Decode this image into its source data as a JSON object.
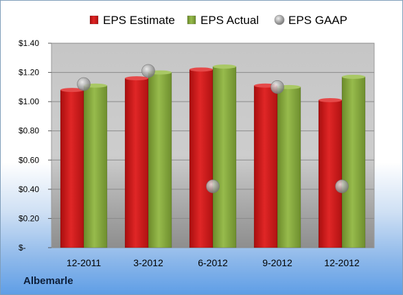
{
  "company": "Albemarle",
  "chart_data": {
    "type": "bar",
    "categories": [
      "12-2011",
      "3-2012",
      "6-2012",
      "9-2012",
      "12-2012"
    ],
    "series": [
      {
        "name": "EPS Estimate",
        "type": "bar",
        "color": "#d41c1c",
        "values": [
          1.08,
          1.16,
          1.22,
          1.11,
          1.01
        ]
      },
      {
        "name": "EPS Actual",
        "type": "bar",
        "color": "#84a83c",
        "values": [
          1.11,
          1.2,
          1.24,
          1.1,
          1.17
        ]
      },
      {
        "name": "EPS GAAP",
        "type": "marker",
        "color": "#a9a9a9",
        "values": [
          1.12,
          1.21,
          0.42,
          1.1,
          0.42
        ]
      }
    ],
    "yticks": [
      "$-",
      "$0.20",
      "$0.40",
      "$0.60",
      "$0.80",
      "$1.00",
      "$1.20",
      "$1.40"
    ],
    "ylim": [
      0,
      1.4
    ],
    "grid": true,
    "legend_position": "top"
  }
}
